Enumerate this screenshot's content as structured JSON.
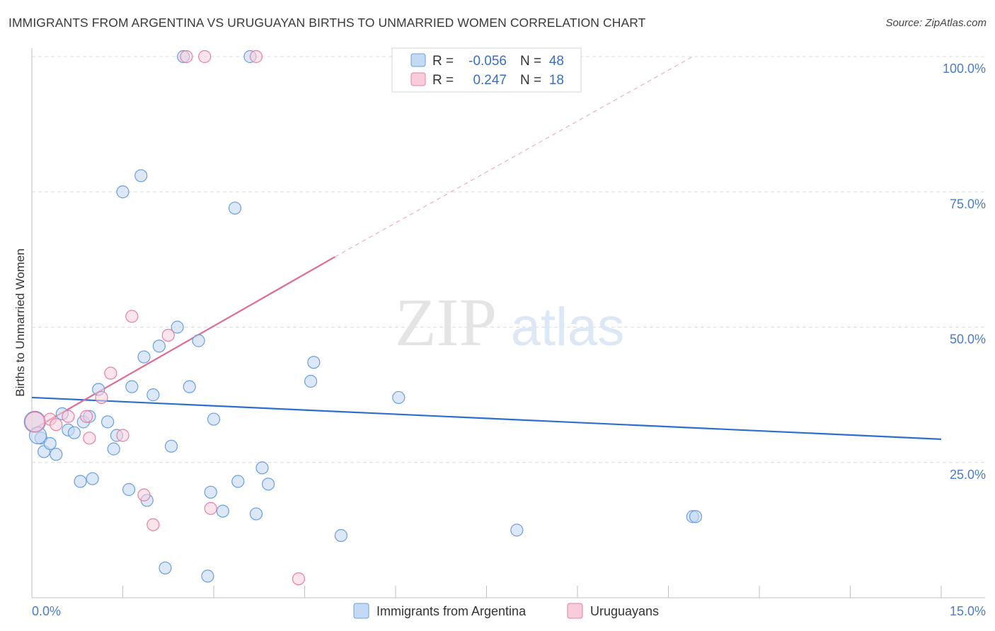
{
  "title": "IMMIGRANTS FROM ARGENTINA VS URUGUAYAN BIRTHS TO UNMARRIED WOMEN CORRELATION CHART",
  "source": "Source: ZipAtlas.com",
  "watermark": {
    "zip": "ZIP",
    "atlas": "atlas"
  },
  "colors": {
    "blue": "#6a9ee0",
    "blue_fill": "#c4d9f3",
    "pink": "#e87fa3",
    "pink_fill": "#f8cdd9",
    "blue_line": "#2c6fd1",
    "pink_line": "#e06a93",
    "tick_text": "#4a7cc7"
  },
  "stats": {
    "row1": {
      "r_label": "R =",
      "r_value": "-0.056",
      "n_label": "N =",
      "n_value": "48"
    },
    "row2": {
      "r_label": "R =",
      "r_value": "0.247",
      "n_label": "N =",
      "n_value": "18"
    }
  },
  "legend": {
    "series1": "Immigrants from Argentina",
    "series2": "Uruguayans"
  },
  "chart_data": {
    "type": "scatter",
    "title": "IMMIGRANTS FROM ARGENTINA VS URUGUAYAN BIRTHS TO UNMARRIED WOMEN CORRELATION CHART",
    "xlabel": "",
    "ylabel": "Births to Unmarried Women",
    "xlim": [
      0,
      15
    ],
    "ylim": [
      0,
      100
    ],
    "x_tick_labels": [
      "0.0%",
      "15.0%"
    ],
    "y_tick_labels": [
      "100.0%",
      "75.0%",
      "50.0%",
      "25.0%"
    ],
    "y_ticks": [
      100,
      75,
      50,
      25
    ],
    "series": [
      {
        "name": "Immigrants from Argentina",
        "points": [
          [
            0.05,
            32.5
          ],
          [
            0.15,
            29.5
          ],
          [
            0.2,
            27.0
          ],
          [
            0.3,
            28.5
          ],
          [
            0.4,
            26.5
          ],
          [
            0.5,
            34.0
          ],
          [
            0.6,
            31.0
          ],
          [
            0.7,
            30.5
          ],
          [
            0.8,
            21.5
          ],
          [
            0.85,
            32.5
          ],
          [
            0.95,
            33.5
          ],
          [
            1.0,
            22.0
          ],
          [
            1.1,
            38.5
          ],
          [
            1.25,
            32.5
          ],
          [
            1.35,
            27.5
          ],
          [
            1.4,
            30.0
          ],
          [
            1.5,
            75.0
          ],
          [
            1.6,
            20.0
          ],
          [
            1.65,
            39.0
          ],
          [
            1.8,
            78.0
          ],
          [
            1.85,
            44.5
          ],
          [
            1.9,
            18.0
          ],
          [
            2.0,
            37.5
          ],
          [
            2.1,
            46.5
          ],
          [
            2.2,
            5.5
          ],
          [
            2.3,
            28.0
          ],
          [
            2.4,
            50.0
          ],
          [
            2.5,
            100
          ],
          [
            2.6,
            39.0
          ],
          [
            2.75,
            47.5
          ],
          [
            2.9,
            4.0
          ],
          [
            2.95,
            19.5
          ],
          [
            3.0,
            33.0
          ],
          [
            3.35,
            72.0
          ],
          [
            3.15,
            16.0
          ],
          [
            3.4,
            21.5
          ],
          [
            3.6,
            100
          ],
          [
            3.7,
            15.5
          ],
          [
            3.8,
            24.0
          ],
          [
            3.9,
            21.0
          ],
          [
            4.6,
            40.0
          ],
          [
            4.65,
            43.5
          ],
          [
            5.1,
            11.5
          ],
          [
            6.05,
            37.0
          ],
          [
            8.0,
            12.5
          ],
          [
            10.9,
            15.0
          ],
          [
            10.95,
            15.0
          ],
          [
            0.1,
            30.0
          ]
        ],
        "trend": {
          "x": [
            0,
            15
          ],
          "y": [
            37.0,
            29.3
          ]
        }
      },
      {
        "name": "Uruguayans",
        "points": [
          [
            0.05,
            32.5
          ],
          [
            0.3,
            33.0
          ],
          [
            0.4,
            32.0
          ],
          [
            0.6,
            33.5
          ],
          [
            0.9,
            33.5
          ],
          [
            0.95,
            29.5
          ],
          [
            1.15,
            37.0
          ],
          [
            1.3,
            41.5
          ],
          [
            1.5,
            30.0
          ],
          [
            1.65,
            52.0
          ],
          [
            1.85,
            19.0
          ],
          [
            2.0,
            13.5
          ],
          [
            2.25,
            48.5
          ],
          [
            2.55,
            100
          ],
          [
            2.85,
            100
          ],
          [
            2.95,
            16.5
          ],
          [
            3.7,
            100
          ],
          [
            4.4,
            3.5
          ]
        ],
        "trend": {
          "x": [
            0,
            5.0
          ],
          "y": [
            31.0,
            63.0
          ],
          "dashed_to": {
            "x": 10.9,
            "y": 100
          }
        }
      }
    ]
  }
}
